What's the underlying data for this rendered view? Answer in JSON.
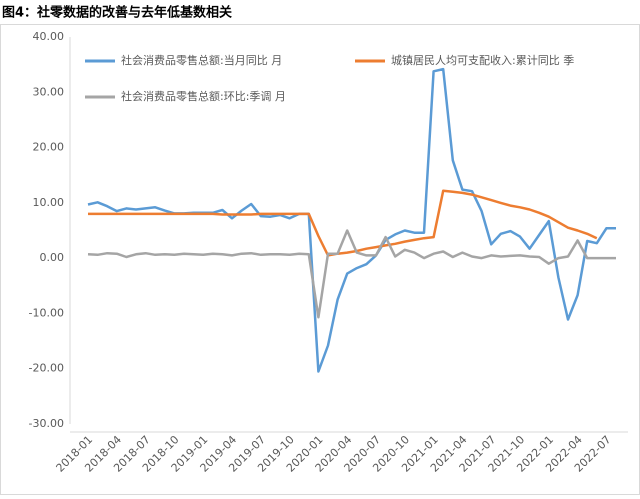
{
  "chart_data": {
    "type": "line",
    "title": "图4：社零数据的改善与去年低基数相关",
    "categories": [
      "2018-01",
      null,
      null,
      "2018-04",
      null,
      null,
      "2018-07",
      null,
      null,
      "2018-10",
      null,
      null,
      "2019-01",
      null,
      null,
      "2019-04",
      null,
      null,
      "2019-07",
      null,
      null,
      "2019-10",
      null,
      null,
      "2020-01",
      null,
      null,
      "2020-04",
      null,
      null,
      "2020-07",
      null,
      null,
      "2020-10",
      null,
      null,
      "2021-01",
      null,
      null,
      "2021-04",
      null,
      null,
      "2021-07",
      null,
      null,
      "2021-10",
      null,
      null,
      "2022-01",
      null,
      null,
      "2022-04",
      null,
      null,
      "2022-07",
      null
    ],
    "series": [
      {
        "name": "社会消费品零售总额:当月同比 月",
        "color": "#5b9bd5",
        "values": [
          9.7,
          10.1,
          9.4,
          8.5,
          9.0,
          8.8,
          9.0,
          9.2,
          8.6,
          8.1,
          8.1,
          8.2,
          8.2,
          8.2,
          8.7,
          7.2,
          8.6,
          9.8,
          7.6,
          7.5,
          7.8,
          7.2,
          8.0,
          8.0,
          -20.5,
          -15.8,
          -7.5,
          -2.8,
          -1.8,
          -1.1,
          0.5,
          3.3,
          4.3,
          5.0,
          4.6,
          4.6,
          33.8,
          34.2,
          17.7,
          12.4,
          12.1,
          8.5,
          2.5,
          4.4,
          4.9,
          3.9,
          1.7,
          4.2,
          6.7,
          -3.5,
          -11.1,
          -6.7,
          3.1,
          2.7,
          5.4,
          5.4
        ]
      },
      {
        "name": "城镇居民人均可支配收入:累计同比 季",
        "color": "#ed7d31",
        "values": [
          8.0,
          8.0,
          8.0,
          8.0,
          8.0,
          8.0,
          8.0,
          8.0,
          8.0,
          8.0,
          8.0,
          8.0,
          8.0,
          8.0,
          7.9,
          7.9,
          7.9,
          7.9,
          8.0,
          8.0,
          8.0,
          8.0,
          8.0,
          8.0,
          4.0,
          0.5,
          0.8,
          1.0,
          1.3,
          1.7,
          2.0,
          2.3,
          2.6,
          3.0,
          3.3,
          3.6,
          3.8,
          12.2,
          12.0,
          11.8,
          11.5,
          11.0,
          10.5,
          10.0,
          9.5,
          9.2,
          8.8,
          8.2,
          7.5,
          6.5,
          5.5,
          5.0,
          4.4,
          3.6,
          null,
          null
        ]
      },
      {
        "name": "社会消费品零售总额:环比:季调 月",
        "color": "#a5a5a5",
        "values": [
          0.7,
          0.6,
          0.9,
          0.8,
          0.2,
          0.7,
          0.9,
          0.6,
          0.7,
          0.6,
          0.8,
          0.7,
          0.6,
          0.8,
          0.7,
          0.5,
          0.8,
          0.9,
          0.6,
          0.7,
          0.7,
          0.6,
          0.8,
          0.7,
          -10.7,
          0.8,
          0.8,
          5.0,
          1.0,
          0.5,
          0.5,
          3.8,
          0.3,
          1.5,
          1.0,
          0.0,
          0.8,
          1.2,
          0.2,
          1.0,
          0.3,
          0.0,
          0.5,
          0.3,
          0.4,
          0.5,
          0.3,
          0.2,
          -1.0,
          0.0,
          0.3,
          3.2,
          0.0,
          0.0,
          0.0,
          0.0
        ]
      }
    ],
    "ylim": [
      -30,
      40
    ],
    "yticks": [
      {
        "value": -30,
        "label": "-30.00"
      },
      {
        "value": -20,
        "label": "-20.00"
      },
      {
        "value": -10,
        "label": "-10.00"
      },
      {
        "value": 0,
        "label": "0.00"
      },
      {
        "value": 10,
        "label": "10.00"
      },
      {
        "value": 20,
        "label": "20.00"
      },
      {
        "value": 30,
        "label": "30.00"
      },
      {
        "value": 40,
        "label": "40.00"
      }
    ],
    "grid": false,
    "legend": "top"
  }
}
